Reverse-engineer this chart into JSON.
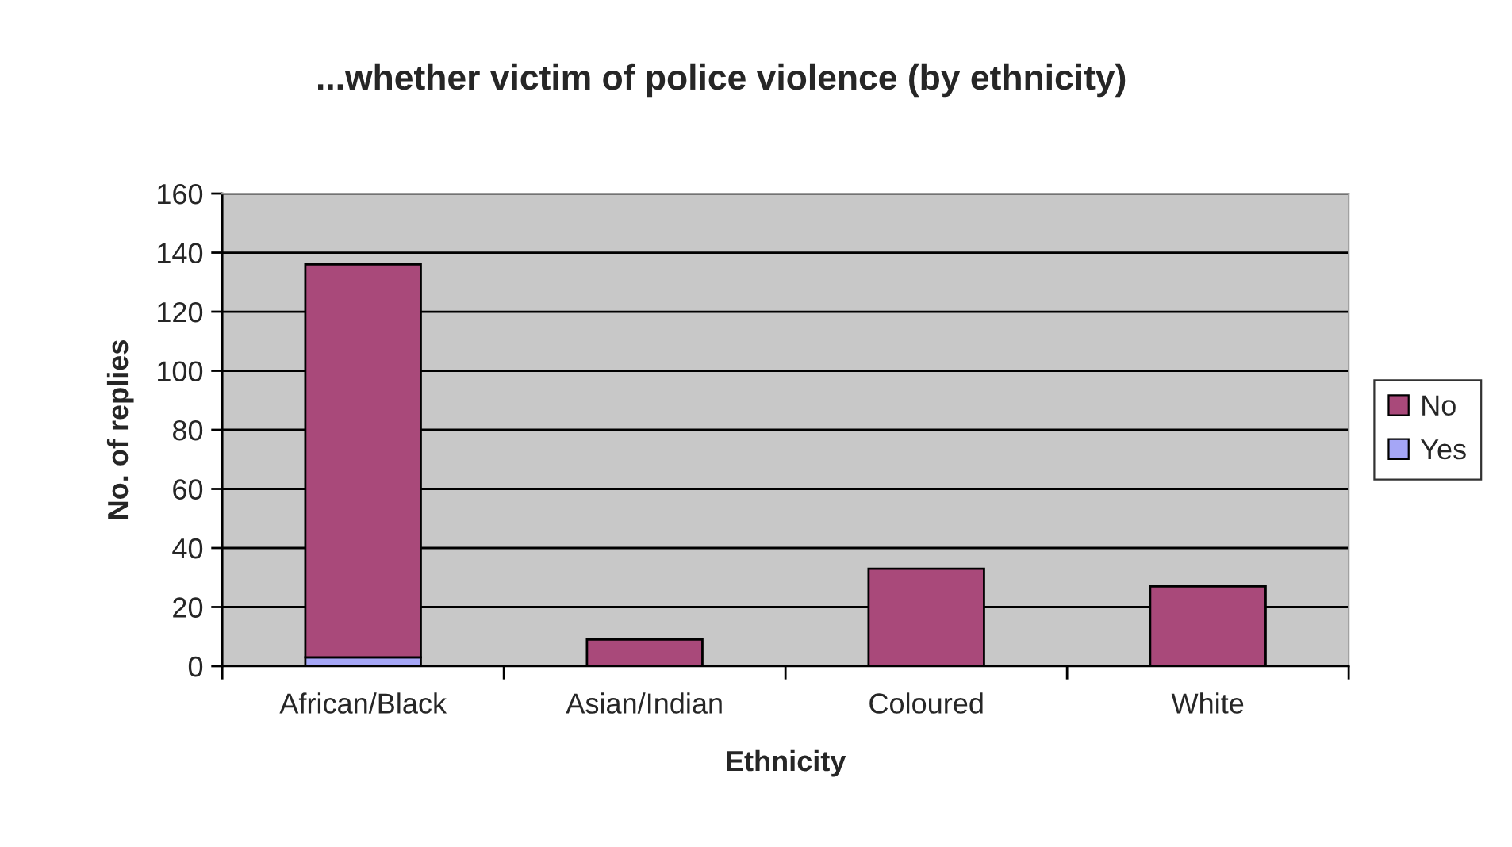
{
  "chart_data": {
    "type": "bar",
    "title": "...whether victim of police violence (by ethnicity)",
    "xlabel": "Ethnicity",
    "ylabel": "No. of replies",
    "categories": [
      "African/Black",
      "Asian/Indian",
      "Coloured",
      "White"
    ],
    "series": [
      {
        "name": "Yes",
        "color": "#a5a6f6",
        "values": [
          3,
          0,
          0,
          0
        ]
      },
      {
        "name": "No",
        "color": "#a9497a",
        "values": [
          133,
          9,
          33,
          27
        ]
      }
    ],
    "stacked": true,
    "ylim": [
      0,
      160
    ],
    "yticks": [
      0,
      20,
      40,
      60,
      80,
      100,
      120,
      140,
      160
    ],
    "grid": "y",
    "legend": "right"
  }
}
